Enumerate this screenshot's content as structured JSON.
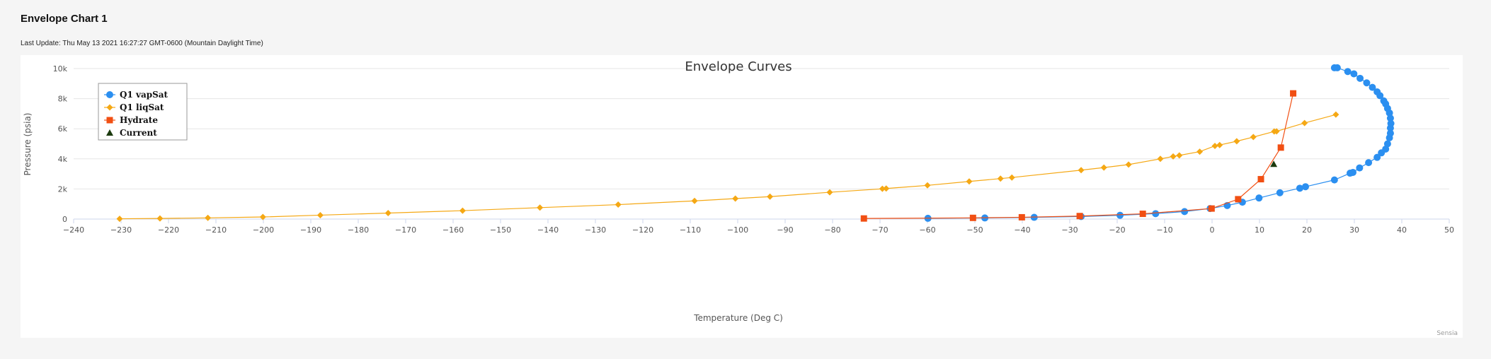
{
  "page": {
    "title": "Envelope Chart 1",
    "last_update": "Last Update: Thu May 13 2021 16:27:27 GMT-0600 (Mountain Daylight Time)"
  },
  "chart_data": {
    "type": "scatter",
    "title": "Envelope Curves",
    "xlabel": "Temperature (Deg C)",
    "ylabel": "Pressure (psia)",
    "xlim": [
      -240,
      50
    ],
    "ylim": [
      0,
      10000
    ],
    "x_ticks": [
      -240,
      -230,
      -220,
      -210,
      -200,
      -190,
      -180,
      -170,
      -160,
      -150,
      -140,
      -130,
      -120,
      -110,
      -100,
      -90,
      -80,
      -70,
      -60,
      -50,
      -40,
      -30,
      -20,
      -10,
      0,
      10,
      20,
      30,
      40,
      50
    ],
    "y_ticks": [
      0,
      2000,
      4000,
      6000,
      8000,
      10000
    ],
    "y_tick_labels": [
      "0",
      "2k",
      "4k",
      "6k",
      "8k",
      "10k"
    ],
    "grid": "horizontal",
    "legend_position": "top-left",
    "credit": "Sensia",
    "series": [
      {
        "name": "Q1 vapSat",
        "marker": "circle",
        "color": "#2b8ff0",
        "line": true,
        "x": [
          -59.9,
          -47.9,
          -37.5,
          -27.6,
          -19.4,
          -11.9,
          -5.8,
          -0.4,
          3.2,
          6.4,
          9.9,
          14.3,
          18.5,
          19.7,
          25.8,
          29.1,
          29.7,
          31.1,
          33.0,
          34.8,
          35.7,
          36.6,
          37.0,
          37.4,
          37.6,
          37.6,
          37.7,
          37.6,
          37.4,
          37.0,
          36.6,
          36.2,
          35.4,
          34.8,
          33.8,
          32.6,
          31.2,
          29.9,
          28.6,
          26.4,
          25.8
        ],
        "y": [
          50,
          75,
          115,
          170,
          250,
          360,
          500,
          700,
          900,
          1120,
          1400,
          1750,
          2050,
          2150,
          2600,
          3050,
          3100,
          3400,
          3750,
          4100,
          4400,
          4650,
          5000,
          5400,
          5700,
          6050,
          6350,
          6700,
          7050,
          7350,
          7650,
          7850,
          8200,
          8450,
          8750,
          9050,
          9350,
          9650,
          9800,
          10050,
          10050
        ]
      },
      {
        "name": "Q1 liqSat",
        "marker": "diamond",
        "color": "#f5a814",
        "line": true,
        "x": [
          -230.3,
          -221.8,
          -211.7,
          -200.1,
          -188.0,
          -173.7,
          -158.0,
          -141.7,
          -125.2,
          -109.1,
          -100.5,
          -93.2,
          -80.6,
          -69.5,
          -68.7,
          -60.0,
          -51.2,
          -44.6,
          -42.2,
          -27.6,
          -22.8,
          -17.6,
          -10.9,
          -8.2,
          -6.9,
          -2.6,
          0.6,
          1.6,
          5.2,
          8.7,
          13.1,
          13.6,
          19.5,
          26.1
        ],
        "y": [
          20,
          40,
          80,
          140,
          260,
          400,
          560,
          760,
          960,
          1210,
          1360,
          1490,
          1780,
          2010,
          2030,
          2240,
          2500,
          2690,
          2760,
          3250,
          3420,
          3620,
          4000,
          4160,
          4230,
          4480,
          4860,
          4920,
          5170,
          5450,
          5820,
          5830,
          6380,
          6940
        ]
      },
      {
        "name": "Hydrate",
        "marker": "square",
        "color": "#f14f13",
        "line": true,
        "x": [
          -73.4,
          -50.4,
          -40.1,
          -27.9,
          -14.6,
          -0.1,
          5.5,
          10.3,
          14.5,
          17.1
        ],
        "y": [
          40,
          80,
          120,
          200,
          350,
          700,
          1320,
          2650,
          4750,
          8350
        ]
      },
      {
        "name": "Current",
        "marker": "triangle",
        "color": "#1b3a0e",
        "line": false,
        "x": [
          13.0
        ],
        "y": [
          3650
        ]
      }
    ]
  }
}
